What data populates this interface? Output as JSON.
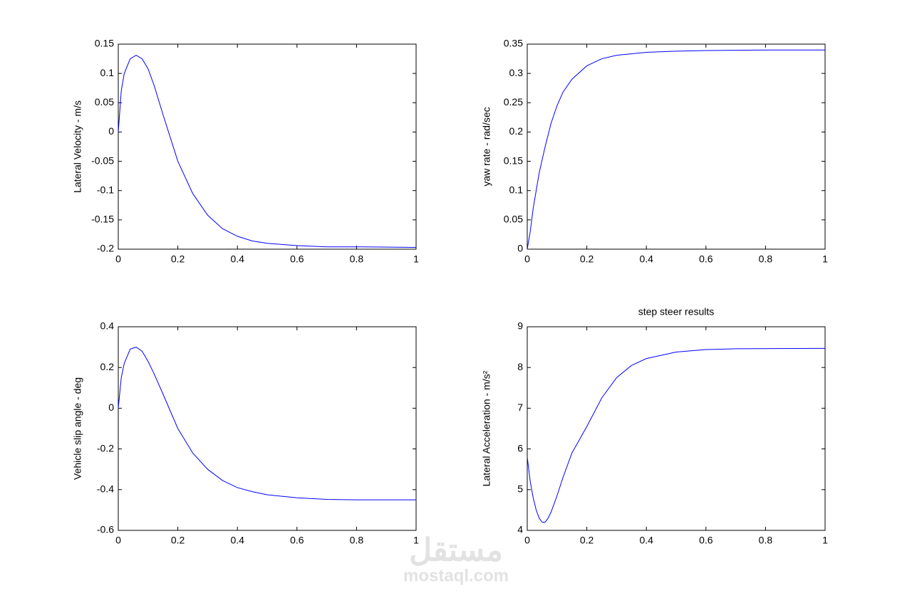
{
  "chart_data": [
    {
      "type": "line",
      "ylabel": "Lateral Velocity - m/s",
      "color": "#0000ff",
      "x": [
        0,
        0.01,
        0.02,
        0.04,
        0.06,
        0.08,
        0.1,
        0.12,
        0.15,
        0.2,
        0.25,
        0.3,
        0.35,
        0.4,
        0.45,
        0.5,
        0.6,
        0.7,
        0.8,
        1
      ],
      "values": [
        0,
        0.07,
        0.1,
        0.125,
        0.131,
        0.125,
        0.108,
        0.08,
        0.03,
        -0.05,
        -0.105,
        -0.142,
        -0.165,
        -0.178,
        -0.186,
        -0.19,
        -0.194,
        -0.196,
        -0.196,
        -0.197
      ],
      "xlim": [
        0,
        1
      ],
      "ylim": [
        -0.2,
        0.15
      ],
      "xticks": [
        0,
        0.2,
        0.4,
        0.6,
        0.8,
        1
      ],
      "yticks": [
        -0.2,
        -0.15,
        -0.1,
        -0.05,
        0,
        0.05,
        0.1,
        0.15
      ]
    },
    {
      "type": "line",
      "ylabel": "yaw rate - rad/sec",
      "color": "#0000ff",
      "x": [
        0,
        0.01,
        0.02,
        0.04,
        0.06,
        0.08,
        0.1,
        0.12,
        0.15,
        0.2,
        0.25,
        0.3,
        0.4,
        0.5,
        0.6,
        0.8,
        1
      ],
      "values": [
        0,
        0.03,
        0.07,
        0.13,
        0.175,
        0.215,
        0.245,
        0.268,
        0.29,
        0.313,
        0.325,
        0.331,
        0.336,
        0.338,
        0.339,
        0.34,
        0.34
      ],
      "xlim": [
        0,
        1
      ],
      "ylim": [
        0,
        0.35
      ],
      "xticks": [
        0,
        0.2,
        0.4,
        0.6,
        0.8,
        1
      ],
      "yticks": [
        0,
        0.05,
        0.1,
        0.15,
        0.2,
        0.25,
        0.3,
        0.35
      ]
    },
    {
      "type": "line",
      "ylabel": "Vehicle slip angle - deg",
      "color": "#0000ff",
      "x": [
        0,
        0.01,
        0.02,
        0.04,
        0.06,
        0.08,
        0.1,
        0.12,
        0.15,
        0.2,
        0.25,
        0.3,
        0.35,
        0.4,
        0.45,
        0.5,
        0.6,
        0.7,
        0.8,
        1
      ],
      "values": [
        0,
        0.15,
        0.22,
        0.29,
        0.3,
        0.28,
        0.23,
        0.17,
        0.07,
        -0.1,
        -0.22,
        -0.3,
        -0.355,
        -0.39,
        -0.41,
        -0.425,
        -0.44,
        -0.448,
        -0.45,
        -0.45
      ],
      "xlim": [
        0,
        1
      ],
      "ylim": [
        -0.6,
        0.4
      ],
      "xticks": [
        0,
        0.2,
        0.4,
        0.6,
        0.8,
        1
      ],
      "yticks": [
        -0.6,
        -0.4,
        -0.2,
        0,
        0.2,
        0.4
      ]
    },
    {
      "type": "line",
      "title": "step steer results",
      "ylabel": "Lateral Acceleration - m/s²",
      "color": "#0000ff",
      "x": [
        0,
        0.01,
        0.02,
        0.03,
        0.04,
        0.05,
        0.06,
        0.07,
        0.08,
        0.1,
        0.12,
        0.15,
        0.2,
        0.25,
        0.3,
        0.35,
        0.4,
        0.5,
        0.6,
        0.7,
        1
      ],
      "values": [
        5.8,
        5.2,
        4.8,
        4.5,
        4.3,
        4.2,
        4.2,
        4.3,
        4.45,
        4.85,
        5.3,
        5.9,
        6.55,
        7.25,
        7.75,
        8.05,
        8.22,
        8.38,
        8.44,
        8.46,
        8.47
      ],
      "xlim": [
        0,
        1
      ],
      "ylim": [
        4,
        9
      ],
      "xticks": [
        0,
        0.2,
        0.4,
        0.6,
        0.8,
        1
      ],
      "yticks": [
        4,
        5,
        6,
        7,
        8,
        9
      ]
    }
  ],
  "watermark": {
    "arabic": "مستقل",
    "latin": "mostaql.com"
  }
}
